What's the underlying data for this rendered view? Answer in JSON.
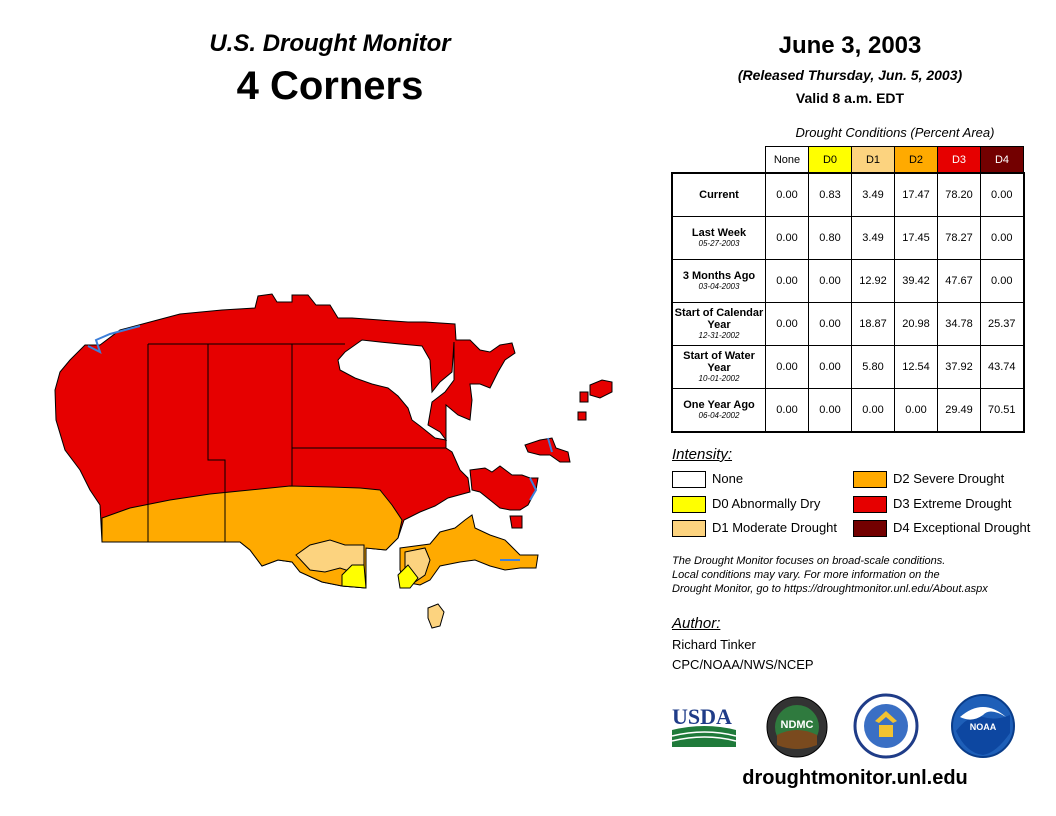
{
  "header": {
    "title": "U.S. Drought Monitor",
    "region": "4 Corners",
    "date": "June 3, 2003",
    "released": "(Released Thursday, Jun. 5, 2003)",
    "valid": "Valid 8 a.m. EDT"
  },
  "table": {
    "caption": "Drought Conditions (Percent Area)",
    "columns": [
      "None",
      "D0",
      "D1",
      "D2",
      "D3",
      "D4"
    ],
    "rows": [
      {
        "label": "Current",
        "date": "",
        "values": [
          "0.00",
          "0.83",
          "3.49",
          "17.47",
          "78.20",
          "0.00"
        ]
      },
      {
        "label": "Last Week",
        "date": "05-27-2003",
        "values": [
          "0.00",
          "0.80",
          "3.49",
          "17.45",
          "78.27",
          "0.00"
        ]
      },
      {
        "label": "3 Months Ago",
        "date": "03-04-2003",
        "values": [
          "0.00",
          "0.00",
          "12.92",
          "39.42",
          "47.67",
          "0.00"
        ]
      },
      {
        "label": "Start of Calendar Year",
        "date": "12-31-2002",
        "values": [
          "0.00",
          "0.00",
          "18.87",
          "20.98",
          "34.78",
          "25.37"
        ]
      },
      {
        "label": "Start of Water Year",
        "date": "10-01-2002",
        "values": [
          "0.00",
          "0.00",
          "5.80",
          "12.54",
          "37.92",
          "43.74"
        ]
      },
      {
        "label": "One Year Ago",
        "date": "06-04-2002",
        "values": [
          "0.00",
          "0.00",
          "0.00",
          "0.00",
          "29.49",
          "70.51"
        ]
      }
    ]
  },
  "legend": {
    "title": "Intensity:",
    "items": [
      {
        "label": "None",
        "color": "#ffffff"
      },
      {
        "label": "D0 Abnormally Dry",
        "color": "#ffff00"
      },
      {
        "label": "D1 Moderate Drought",
        "color": "#fcd37f"
      },
      {
        "label": "D2 Severe Drought",
        "color": "#ffaa00"
      },
      {
        "label": "D3 Extreme Drought",
        "color": "#e60000"
      },
      {
        "label": "D4 Exceptional Drought",
        "color": "#730000"
      }
    ]
  },
  "disclaimer": {
    "line1": "The Drought Monitor focuses on broad-scale conditions.",
    "line2": "Local conditions may vary. For more information on the",
    "line3": "Drought Monitor, go to https://droughtmonitor.unl.edu/About.aspx"
  },
  "author": {
    "title": "Author:",
    "name": "Richard Tinker",
    "org": "CPC/NOAA/NWS/NCEP"
  },
  "logos": {
    "usda": "USDA",
    "ndmc": "NDMC",
    "noaa": "NOAA"
  },
  "footer": {
    "url": "droughtmonitor.unl.edu"
  },
  "colors": {
    "none": "#ffffff",
    "d0": "#ffff00",
    "d1": "#fcd37f",
    "d2": "#ffaa00",
    "d3": "#e60000",
    "d4": "#730000",
    "water": "#3d7fd9"
  }
}
